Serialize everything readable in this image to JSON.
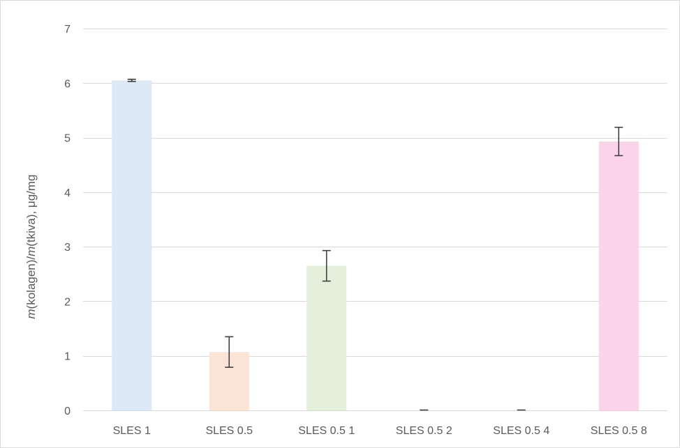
{
  "chart_data": {
    "type": "bar",
    "title": "",
    "xlabel": "",
    "ylabel_parts": [
      {
        "text": "m",
        "italic": true
      },
      {
        "text": "(kolagen)/",
        "italic": false
      },
      {
        "text": "m",
        "italic": true
      },
      {
        "text": "(tkiva), μg/mg",
        "italic": false
      }
    ],
    "categories": [
      "SLES 1",
      "SLES 0.5",
      "SLES 0.5 1",
      "SLES 0.5 2",
      "SLES 0.5 4",
      "SLES 0.5 8"
    ],
    "values": [
      6.05,
      1.07,
      2.65,
      0.0,
      0.0,
      4.93
    ],
    "errors": [
      0.02,
      0.28,
      0.28,
      0.0,
      0.0,
      0.26
    ],
    "colors": [
      "#dde9f6",
      "#fbe4d6",
      "#e3efda",
      "#e8e8e8",
      "#e8e8e8",
      "#fbd4ea"
    ],
    "ylim": [
      0,
      7
    ],
    "yticks": [
      0,
      1,
      2,
      3,
      4,
      5,
      6,
      7
    ],
    "grid": true,
    "legend": "none"
  }
}
